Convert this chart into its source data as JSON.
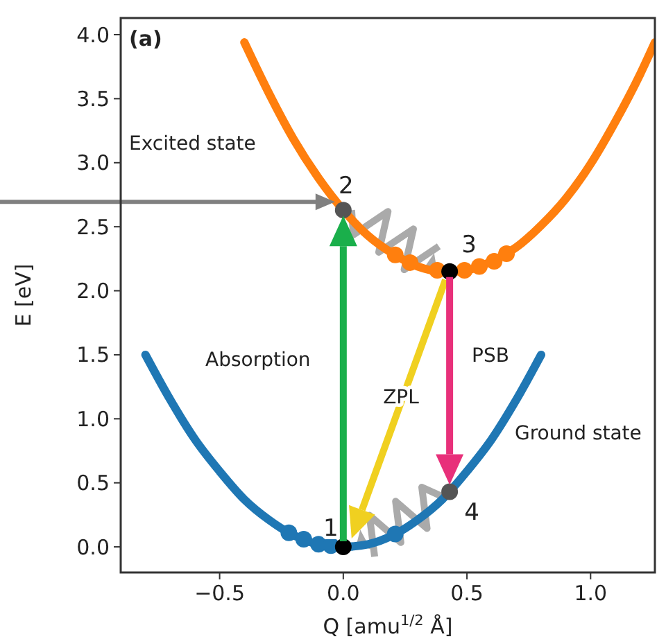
{
  "chart_data": {
    "type": "line",
    "xlabel": "Q [amu$^{1/2}$ Å]",
    "ylabel": "E [eV]",
    "xlim": [
      -0.9,
      1.26
    ],
    "ylim": [
      -0.2,
      4.13
    ],
    "xticks": [
      {
        "value": -0.5,
        "label": "−0.5"
      },
      {
        "value": 0,
        "label": "0.0"
      },
      {
        "value": 0.5,
        "label": "0.5"
      },
      {
        "value": 1,
        "label": "1.0"
      }
    ],
    "yticks": [
      {
        "value": 0,
        "label": "0.0"
      },
      {
        "value": 0.5,
        "label": "0.5"
      },
      {
        "value": 1,
        "label": "1.0"
      },
      {
        "value": 1.5,
        "label": "1.5"
      },
      {
        "value": 2,
        "label": "2.0"
      },
      {
        "value": 2.5,
        "label": "2.5"
      },
      {
        "value": 3,
        "label": "3.0"
      },
      {
        "value": 3.5,
        "label": "3.5"
      },
      {
        "value": 4,
        "label": "4.0"
      }
    ],
    "grid": false,
    "series": [
      {
        "type": "line",
        "color": "#1f77b4",
        "x": [
          -0.8,
          -0.7,
          -0.6,
          -0.5,
          -0.4,
          -0.3,
          -0.2,
          -0.1,
          0,
          0.1,
          0.2,
          0.3,
          0.4,
          0.5,
          0.6,
          0.7,
          0.8
        ],
        "values": [
          1.5,
          1.15,
          0.84,
          0.59,
          0.37,
          0.21,
          0.09,
          0.02,
          0,
          0.02,
          0.09,
          0.21,
          0.37,
          0.59,
          0.84,
          1.15,
          1.5
        ]
      },
      {
        "type": "line",
        "color": "#ff7f0e",
        "x": [
          -0.4,
          -0.3,
          -0.2,
          -0.1,
          0,
          0.1,
          0.2,
          0.3,
          0.4,
          0.43,
          0.5,
          0.6,
          0.7,
          0.8,
          0.9,
          1.0,
          1.1,
          1.2,
          1.26
        ],
        "values": [
          3.94,
          3.54,
          3.18,
          2.88,
          2.63,
          2.43,
          2.29,
          2.19,
          2.15,
          2.15,
          2.16,
          2.23,
          2.34,
          2.51,
          2.72,
          2.99,
          3.32,
          3.69,
          3.94
        ]
      },
      {
        "type": "scatter",
        "color": "#1f77b4",
        "x": [
          -0.22,
          -0.16,
          -0.1,
          -0.05,
          0.21
        ],
        "values": [
          0.11,
          0.06,
          0.02,
          0.01,
          0.1
        ]
      },
      {
        "type": "scatter",
        "color": "#ff7f0e",
        "x": [
          0.21,
          0.27,
          0.38,
          0.49,
          0.55,
          0.61,
          0.66
        ],
        "values": [
          2.28,
          2.22,
          2.16,
          2.16,
          2.19,
          2.23,
          2.29
        ]
      },
      {
        "type": "scatter",
        "color": "#000000",
        "x": [
          0,
          0.43
        ],
        "values": [
          0,
          2.15
        ]
      },
      {
        "type": "scatter",
        "color": "#555555",
        "x": [
          0,
          0.43
        ],
        "values": [
          2.63,
          0.43
        ]
      }
    ],
    "annotations": [
      "(a)",
      "Excited state",
      "Ground state",
      "Absorption",
      "ZPL",
      "PSB",
      "1",
      "2",
      {
        "text": "3",
        "x": 0.43,
        "y": 2.15
      },
      "4"
    ]
  }
}
